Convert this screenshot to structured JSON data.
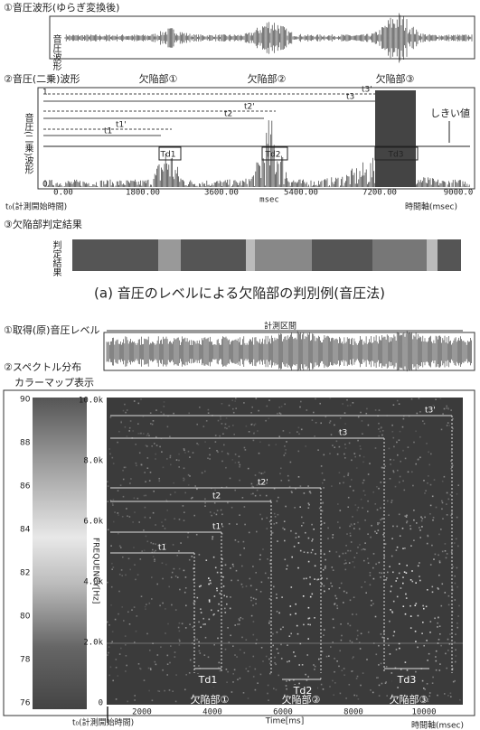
{
  "panel_a": {
    "wave_title": "①音圧波形(ゆらぎ変換後)",
    "wave_side_label": "音圧波形",
    "square_title": "②音圧(二乗)波形",
    "y_label": "音圧(二乗)波形",
    "y_top": "1",
    "y_bottom": "0",
    "x_ticks": [
      "0.00",
      "1800.00",
      "3600.00",
      "5400.00",
      "7200.00",
      "9000.0"
    ],
    "x_unit": "msec",
    "defects": [
      "欠陥部①",
      "欠陥部②",
      "欠陥部③"
    ],
    "t_labels": [
      "t1",
      "t1'",
      "t2",
      "t2'",
      "t3",
      "t3'"
    ],
    "td_labels": [
      "Td1",
      "Td2",
      "Td3"
    ],
    "threshold": "しきい値",
    "t0": "t₀(計測開始時間)",
    "time_axis": "時間軸(msec)",
    "judge_title": "③欠陥部判定結果",
    "judge_side_label": "判定結果"
  },
  "caption_a": "(a) 音圧のレベルによる欠陥部の判別例(音圧法)",
  "panel_b": {
    "raw_title": "①取得(原)音圧レベル",
    "interval": "計測区間",
    "spectrum_title": "②スペクトル分布",
    "colormap_title": "カラーマップ表示",
    "colorbar_ticks": [
      "90",
      "88",
      "86",
      "84",
      "82",
      "80",
      "78",
      "76"
    ],
    "y_ticks": [
      "10.0k",
      "8.0k",
      "6.0k",
      "4.0k",
      "2.0k",
      "0"
    ],
    "y_label": "FREQUENCY[Hz]",
    "x_ticks": [
      "2000",
      "4000",
      "6000",
      "8000",
      "10000"
    ],
    "x_label": "Time[ms]",
    "t_labels": [
      "t1",
      "t1'",
      "t2",
      "t2'",
      "t3",
      "t3'"
    ],
    "td_labels": [
      "Td1",
      "Td2",
      "Td3"
    ],
    "defects": [
      "欠陥部①",
      "欠陥部②",
      "欠陥部③"
    ],
    "t0": "t₀(計測開始時間)",
    "time_axis": "時間軸(msec)"
  }
}
